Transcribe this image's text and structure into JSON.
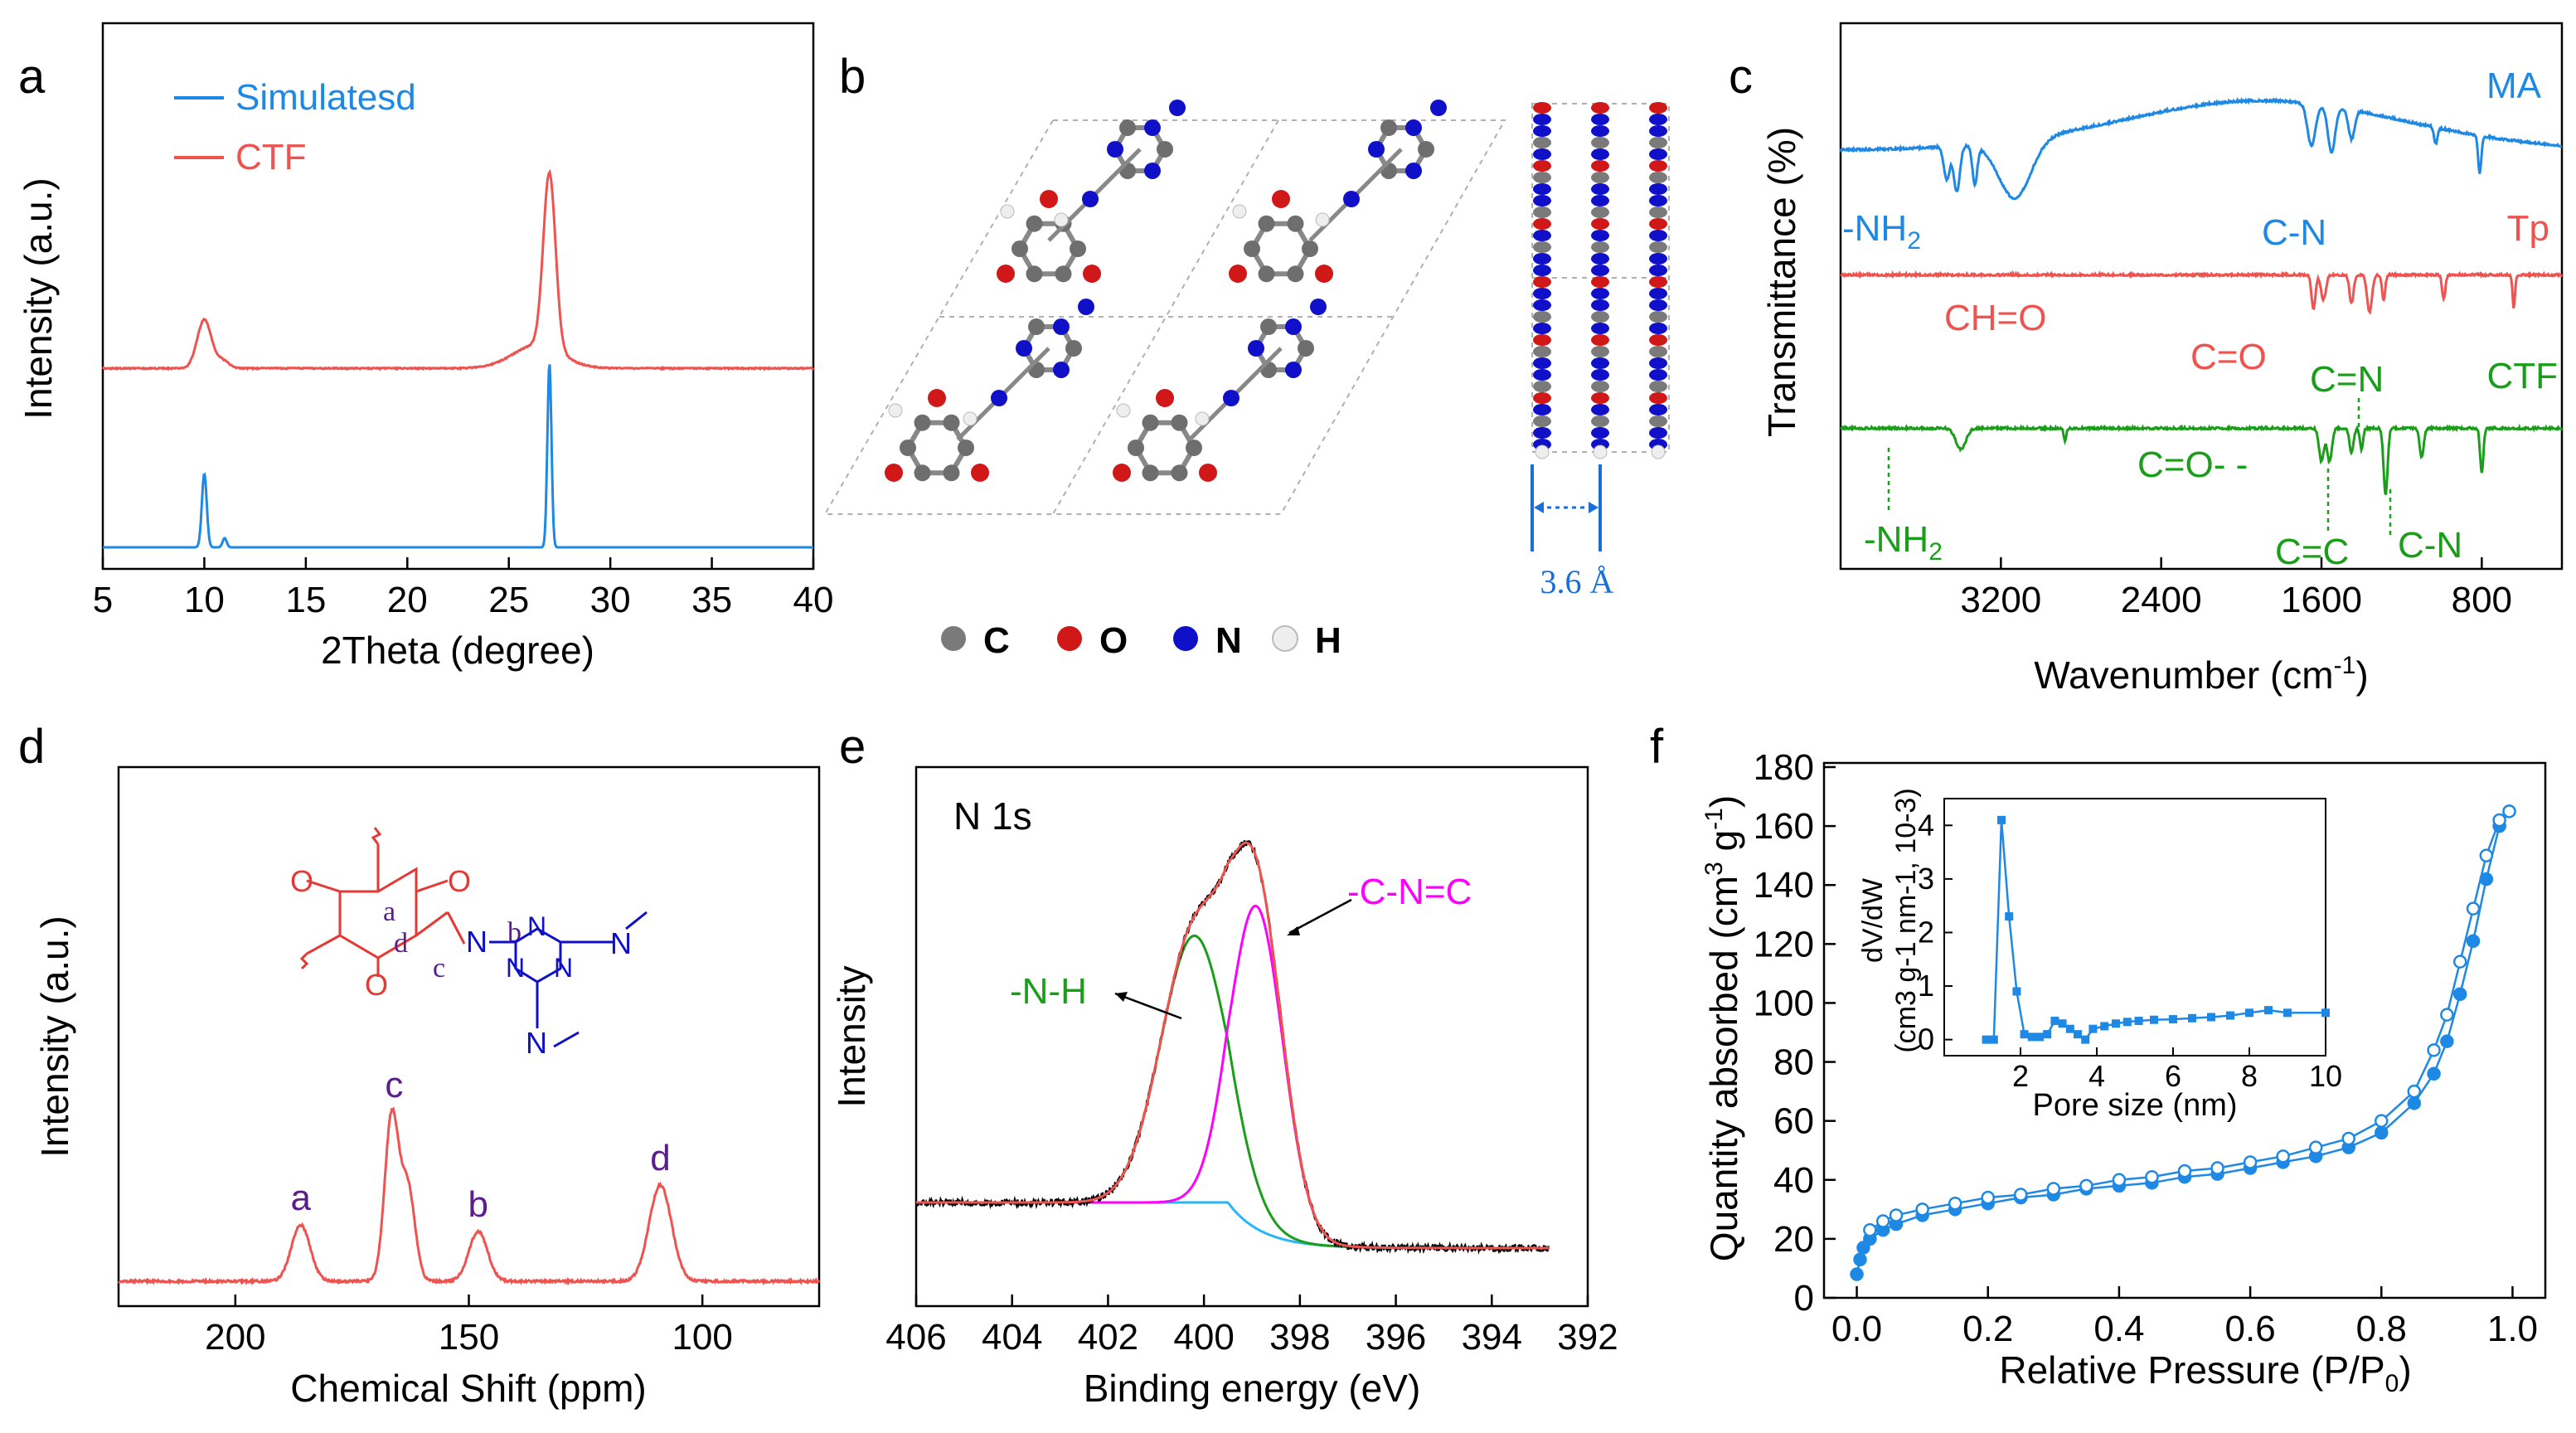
{
  "colors": {
    "blue": "#1e88e5",
    "red": "#ef5350",
    "green": "#1a9e1a",
    "magenta": "#ff00ff",
    "purple": "#5a1d8c",
    "cyan": "#29b6f6",
    "darkblue": "#1010c8",
    "gray": "#808080",
    "black": "#000000",
    "dashblue": "#1a6ed8"
  },
  "chart_data": [
    {
      "id": "a",
      "type": "line",
      "panel_label": "a",
      "xlabel": "2Theta (degree)",
      "ylabel": "Intensity (a.u.)",
      "xlim": [
        5,
        40
      ],
      "xticks": [
        5,
        10,
        15,
        20,
        25,
        30,
        35,
        40
      ],
      "legend": [
        "Simulatesd",
        "CTF"
      ],
      "series": [
        {
          "name": "CTF",
          "color": "red",
          "offset": 0.52,
          "baseline": 0,
          "peaks": [
            [
              10.0,
              0.25,
              0.35
            ],
            [
              10.9,
              0.04,
              0.3
            ],
            [
              27.0,
              0.9,
              0.3
            ],
            [
              26.4,
              0.12,
              1.2
            ]
          ]
        },
        {
          "name": "Simulatesd",
          "color": "blue",
          "offset": 0.0,
          "baseline": 0,
          "peaks": [
            [
              10.0,
              0.4,
              0.12
            ],
            [
              11.0,
              0.05,
              0.1
            ],
            [
              27.0,
              1.0,
              0.1
            ]
          ]
        }
      ]
    },
    {
      "id": "c",
      "type": "line",
      "panel_label": "c",
      "xlabel": "Wavenumber (cm-1)",
      "ylabel": "Transmittance (%)",
      "xlim": [
        4000,
        400
      ],
      "xticks": [
        3200,
        2400,
        1600,
        800
      ],
      "series_labels": [
        "MA",
        "Tp",
        "CTF"
      ],
      "annotations": [
        "-NH2",
        "C-N",
        "CH=O",
        "C=O",
        "C=N",
        "C=O",
        "-NH2",
        "C=C",
        "C-N"
      ]
    },
    {
      "id": "d",
      "type": "line",
      "panel_label": "d",
      "xlabel": "Chemical Shift (ppm)",
      "ylabel": "Intensity (a.u.)",
      "xlim": [
        225,
        75
      ],
      "xticks": [
        200,
        150,
        100
      ],
      "peak_labels": [
        {
          "ppm": 186,
          "label": "a"
        },
        {
          "ppm": 166,
          "label": "c"
        },
        {
          "ppm": 148,
          "label": "b"
        },
        {
          "ppm": 109,
          "label": "d"
        }
      ],
      "peaks": [
        [
          186,
          0.34,
          2.0
        ],
        [
          166.5,
          1.0,
          1.5
        ],
        [
          163,
          0.55,
          1.5
        ],
        [
          148,
          0.3,
          2.0
        ],
        [
          109,
          0.58,
          2.4
        ]
      ]
    },
    {
      "id": "e",
      "type": "line",
      "panel_label": "e",
      "title": "N 1s",
      "xlabel": "Binding energy (eV)",
      "ylabel": "Intensity",
      "xlim": [
        406,
        392
      ],
      "xticks": [
        406,
        404,
        402,
        400,
        398,
        396,
        394,
        392
      ],
      "components": [
        {
          "name": "-N-H",
          "center": 400.2,
          "height": 0.67,
          "sigma": 0.7,
          "color": "green"
        },
        {
          "name": "-C-N=C",
          "center": 398.9,
          "height": 0.81,
          "sigma": 0.55,
          "color": "magenta"
        }
      ],
      "background": {
        "left": 0.0,
        "right": -0.11,
        "color": "cyan"
      },
      "envelope_color": "red",
      "raw_color": "black"
    },
    {
      "id": "f",
      "type": "scatter",
      "panel_label": "f",
      "xlabel": "Relative Pressure (P/P0)",
      "ylabel": "Quantity absorbed (cm3 g-1)",
      "xlim": [
        -0.05,
        1.05
      ],
      "ylim": [
        0,
        180
      ],
      "xticks": [
        0.0,
        0.2,
        0.4,
        0.6,
        0.8,
        1.0
      ],
      "yticks": [
        0,
        20,
        40,
        60,
        80,
        100,
        120,
        140,
        160,
        180
      ],
      "adsorption": {
        "x": [
          0.0,
          0.005,
          0.01,
          0.02,
          0.04,
          0.06,
          0.1,
          0.15,
          0.2,
          0.25,
          0.3,
          0.35,
          0.4,
          0.45,
          0.5,
          0.55,
          0.6,
          0.65,
          0.7,
          0.75,
          0.8,
          0.85,
          0.88,
          0.9,
          0.92,
          0.94,
          0.96,
          0.98,
          0.995
        ],
        "y": [
          8,
          13,
          17,
          20,
          23,
          25,
          28,
          30,
          32,
          34,
          35,
          37,
          38,
          39,
          41,
          42,
          44,
          46,
          48,
          51,
          56,
          66,
          76,
          87,
          103,
          121,
          142,
          160,
          165
        ]
      },
      "desorption": {
        "x": [
          0.995,
          0.98,
          0.96,
          0.94,
          0.92,
          0.9,
          0.88,
          0.85,
          0.8,
          0.75,
          0.7,
          0.65,
          0.6,
          0.55,
          0.5,
          0.45,
          0.4,
          0.35,
          0.3,
          0.25,
          0.2,
          0.15,
          0.1,
          0.06,
          0.04,
          0.02
        ],
        "y": [
          165,
          162,
          150,
          132,
          114,
          96,
          84,
          70,
          60,
          54,
          51,
          48,
          46,
          44,
          43,
          41,
          40,
          38,
          37,
          35,
          34,
          32,
          30,
          28,
          26,
          23
        ]
      },
      "inset": {
        "xlabel": "Pore size (nm)",
        "ylabel": "dV/dW (cm3 g-1 nm-1, 10-3)",
        "xlim": [
          0,
          10
        ],
        "ylim": [
          -0.3,
          4.5
        ],
        "xticks": [
          2,
          4,
          6,
          8,
          10
        ],
        "yticks": [
          0,
          1,
          2,
          3,
          4
        ],
        "x": [
          1.1,
          1.3,
          1.5,
          1.7,
          1.9,
          2.1,
          2.3,
          2.5,
          2.7,
          2.9,
          3.1,
          3.3,
          3.5,
          3.7,
          3.9,
          4.2,
          4.5,
          4.8,
          5.1,
          5.5,
          6.0,
          6.5,
          7.0,
          7.5,
          8.0,
          8.5,
          9.0,
          10.0
        ],
        "y": [
          0.0,
          0.0,
          4.1,
          2.3,
          0.9,
          0.1,
          0.05,
          0.05,
          0.1,
          0.35,
          0.3,
          0.2,
          0.1,
          0.0,
          0.2,
          0.25,
          0.3,
          0.33,
          0.35,
          0.37,
          0.38,
          0.4,
          0.42,
          0.45,
          0.5,
          0.55,
          0.5,
          0.5
        ]
      }
    }
  ],
  "panel_a": {
    "label": "a",
    "legend_sim": "Simulatesd",
    "legend_ctf": "CTF",
    "xlabel": "2Theta (degree)",
    "ylabel": "Intensity (a.u.)",
    "xticks": [
      "5",
      "10",
      "15",
      "20",
      "25",
      "30",
      "35",
      "40"
    ]
  },
  "panel_b": {
    "label": "b",
    "distance": "3.6 Å",
    "legend": [
      "C",
      "O",
      "N",
      "H"
    ]
  },
  "panel_c": {
    "label": "c",
    "xlabel_main": "Wavenumber (cm",
    "xlabel_sup": "-1",
    "xlabel_end": ")",
    "ylabel": "Transmittance (%)",
    "xticks": [
      "3200",
      "2400",
      "1600",
      "800"
    ],
    "MA": "MA",
    "Tp": "Tp",
    "CTF": "CTF",
    "nh2_top": "-NH",
    "sub2": "2",
    "cn_top": "C-N",
    "cho": "CH=O",
    "co_red": "C=O",
    "cn_green": "C=N",
    "co_green": "C=O- -",
    "nh2_bot": "-NH",
    "cc": "C=C",
    "cn_bot": "C-N"
  },
  "panel_d": {
    "label": "d",
    "xlabel": "Chemical Shift (ppm)",
    "ylabel": "Intensity (a.u.)",
    "xticks": [
      "200",
      "150",
      "100"
    ],
    "peaks": [
      "a",
      "c",
      "b",
      "d"
    ],
    "mol_labels": [
      "a",
      "b",
      "c",
      "d"
    ],
    "atom_o": "O",
    "atom_n": "N"
  },
  "panel_e": {
    "label": "e",
    "title": "N 1s",
    "xlabel": "Binding energy (eV)",
    "ylabel": "Intensity",
    "xticks": [
      "406",
      "404",
      "402",
      "400",
      "398",
      "396",
      "394",
      "392"
    ],
    "nh": "-N-H",
    "cnc": "-C-N=C"
  },
  "panel_f": {
    "label": "f",
    "xlabel_main": "Relative Pressure (P/P",
    "xlabel_sub": "0",
    "xlabel_end": ")",
    "ylabel_main": "Quantity absorbed (cm",
    "ylabel_sup1": "3",
    "ylabel_mid": " g",
    "ylabel_sup2": "-1",
    "ylabel_end": ")",
    "xticks": [
      "0.0",
      "0.2",
      "0.4",
      "0.6",
      "0.8",
      "1.0"
    ],
    "yticks": [
      "0",
      "20",
      "40",
      "60",
      "80",
      "100",
      "120",
      "140",
      "160",
      "180"
    ],
    "inset_xlabel": "Pore size (nm)",
    "inset_ylabel1": "dV/dW",
    "inset_ylabel2": "(cm3 g-1 nm-1, 10-3)",
    "inset_xticks": [
      "2",
      "4",
      "6",
      "8",
      "10"
    ],
    "inset_yticks": [
      "0",
      "1",
      "2",
      "3",
      "4"
    ]
  }
}
